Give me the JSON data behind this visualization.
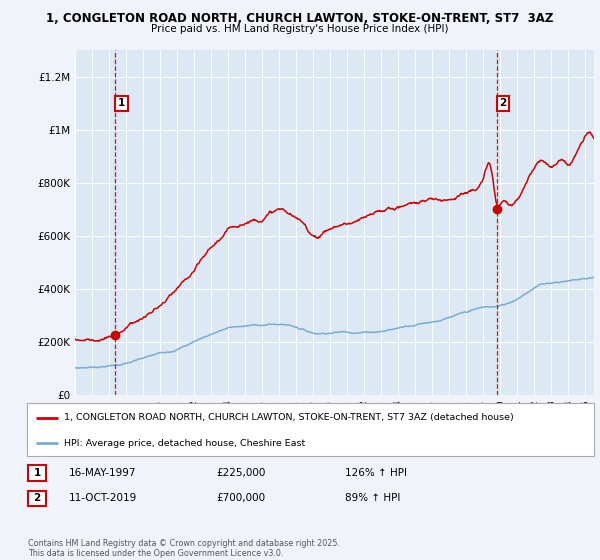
{
  "title_line1": "1, CONGLETON ROAD NORTH, CHURCH LAWTON, STOKE-ON-TRENT, ST7  3AZ",
  "title_line2": "Price paid vs. HM Land Registry's House Price Index (HPI)",
  "bg_color": "#f0f4fa",
  "plot_bg_color": "#dde8f5",
  "grid_color": "#ffffff",
  "house_color": "#cc0000",
  "hpi_color": "#7aadd4",
  "ylim": [
    0,
    1300000
  ],
  "yticks": [
    0,
    200000,
    400000,
    600000,
    800000,
    1000000,
    1200000
  ],
  "ytick_labels": [
    "£0",
    "£200K",
    "£400K",
    "£600K",
    "£800K",
    "£1M",
    "£1.2M"
  ],
  "sale1_x": 1997.37,
  "sale1_y": 225000,
  "sale1_label": "1",
  "sale2_x": 2019.78,
  "sale2_y": 700000,
  "sale2_label": "2",
  "legend_house": "1, CONGLETON ROAD NORTH, CHURCH LAWTON, STOKE-ON-TRENT, ST7 3AZ (detached house)",
  "legend_hpi": "HPI: Average price, detached house, Cheshire East",
  "annotation1_date": "16-MAY-1997",
  "annotation1_price": "£225,000",
  "annotation1_hpi": "126% ↑ HPI",
  "annotation2_date": "11-OCT-2019",
  "annotation2_price": "£700,000",
  "annotation2_hpi": "89% ↑ HPI",
  "footer": "Contains HM Land Registry data © Crown copyright and database right 2025.\nThis data is licensed under the Open Government Licence v3.0.",
  "xmin": 1995,
  "xmax": 2025.5
}
